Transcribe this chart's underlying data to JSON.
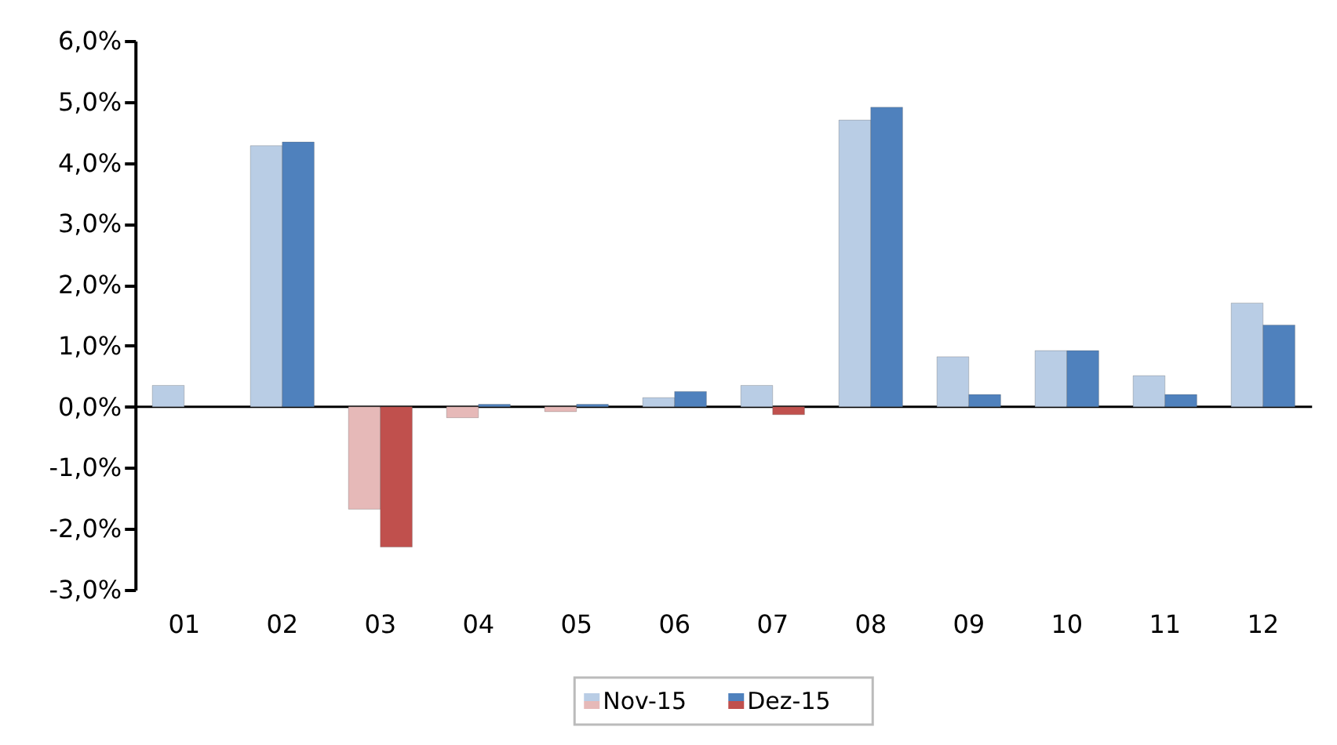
{
  "chart_data": {
    "type": "bar",
    "categories": [
      "01",
      "02",
      "03",
      "04",
      "05",
      "06",
      "07",
      "08",
      "09",
      "10",
      "11",
      "12"
    ],
    "series": [
      {
        "name": "Nov-15",
        "color": "#b9cde5",
        "colors": [
          "#b9cde5",
          "#b9cde5",
          "#e6b9b8",
          "#e6b9b8",
          "#e6b9b8",
          "#b9cde5",
          "#b9cde5",
          "#b9cde5",
          "#b9cde5",
          "#b9cde5",
          "#b9cde5",
          "#b9cde5"
        ],
        "values": [
          0.35,
          4.28,
          -1.68,
          -0.18,
          -0.08,
          0.15,
          0.35,
          4.7,
          0.82,
          0.92,
          0.51,
          1.7
        ]
      },
      {
        "name": "Dez-15",
        "color": "#4f81bd",
        "colors": [
          "#4f81bd",
          "#4f81bd",
          "#c0504d",
          "#4f81bd",
          "#4f81bd",
          "#4f81bd",
          "#c0504d",
          "#4f81bd",
          "#4f81bd",
          "#4f81bd",
          "#4f81bd",
          "#4f81bd"
        ],
        "values": [
          null,
          4.34,
          -2.3,
          0.04,
          0.04,
          0.25,
          -0.13,
          4.91,
          0.2,
          0.92,
          0.2,
          1.34
        ]
      }
    ],
    "ylim": [
      -3,
      6
    ],
    "yticks": [
      {
        "value": -3,
        "label": "-3,0%"
      },
      {
        "value": -2,
        "label": "-2,0%"
      },
      {
        "value": -1,
        "label": "-1,0%"
      },
      {
        "value": 0,
        "label": "0,0%"
      },
      {
        "value": 1,
        "label": "1,0%"
      },
      {
        "value": 2,
        "label": "2,0%"
      },
      {
        "value": 3,
        "label": "3,0%"
      },
      {
        "value": 4,
        "label": "4,0%"
      },
      {
        "value": 5,
        "label": "5,0%"
      },
      {
        "value": 6,
        "label": "6,0%"
      }
    ],
    "grid": false,
    "ref_lines": [
      {
        "axis": "y",
        "value": 0,
        "color": "#000000",
        "line_style": "solid"
      }
    ],
    "legend": "bottom"
  }
}
